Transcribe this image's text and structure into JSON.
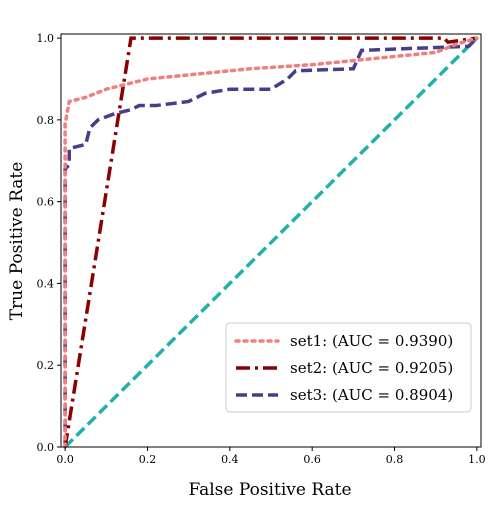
{
  "chart_data": {
    "type": "line",
    "title": "",
    "xlabel": "False Positive Rate",
    "ylabel": "True Positive Rate",
    "xlim": [
      -0.01,
      1.01
    ],
    "ylim": [
      0.0,
      1.01
    ],
    "xticks": [
      "0.0",
      "0.2",
      "0.4",
      "0.6",
      "0.8",
      "1.0"
    ],
    "yticks": [
      "0.0",
      "0.2",
      "0.4",
      "0.6",
      "0.8",
      "1.0"
    ],
    "grid": false,
    "legend_position": "lower-right",
    "series": [
      {
        "name": "set1: (AUC = 0.9390)",
        "color": "#f08080",
        "dash": "dotted",
        "x": [
          0.0,
          0.0,
          0.01,
          0.05,
          0.1,
          0.2,
          0.3,
          0.45,
          0.6,
          0.7,
          0.8,
          0.9,
          0.95,
          1.0
        ],
        "y": [
          0.0,
          0.79,
          0.845,
          0.855,
          0.875,
          0.9,
          0.91,
          0.925,
          0.935,
          0.945,
          0.955,
          0.965,
          0.985,
          1.0
        ]
      },
      {
        "name": "set2: (AUC = 0.9205)",
        "color": "#8b0000",
        "dash": "dashdot",
        "x": [
          0.0,
          0.16,
          0.4,
          0.92,
          0.93,
          1.0
        ],
        "y": [
          0.0,
          1.0,
          1.0,
          1.0,
          0.99,
          1.0
        ]
      },
      {
        "name": "set3: (AUC = 0.8904)",
        "color": "#483d8b",
        "dash": "dashed",
        "x": [
          0.0,
          0.0,
          0.01,
          0.01,
          0.05,
          0.06,
          0.08,
          0.12,
          0.16,
          0.18,
          0.22,
          0.3,
          0.34,
          0.4,
          0.5,
          0.54,
          0.56,
          0.7,
          0.72,
          0.98,
          1.0
        ],
        "y": [
          0.0,
          0.68,
          0.69,
          0.73,
          0.74,
          0.78,
          0.8,
          0.815,
          0.825,
          0.835,
          0.835,
          0.845,
          0.865,
          0.875,
          0.875,
          0.9,
          0.92,
          0.925,
          0.97,
          0.98,
          1.0
        ]
      },
      {
        "name": "",
        "color": "#20b2aa",
        "dash": "dashed",
        "x": [
          0.0,
          1.0
        ],
        "y": [
          0.0,
          1.0
        ]
      }
    ]
  }
}
